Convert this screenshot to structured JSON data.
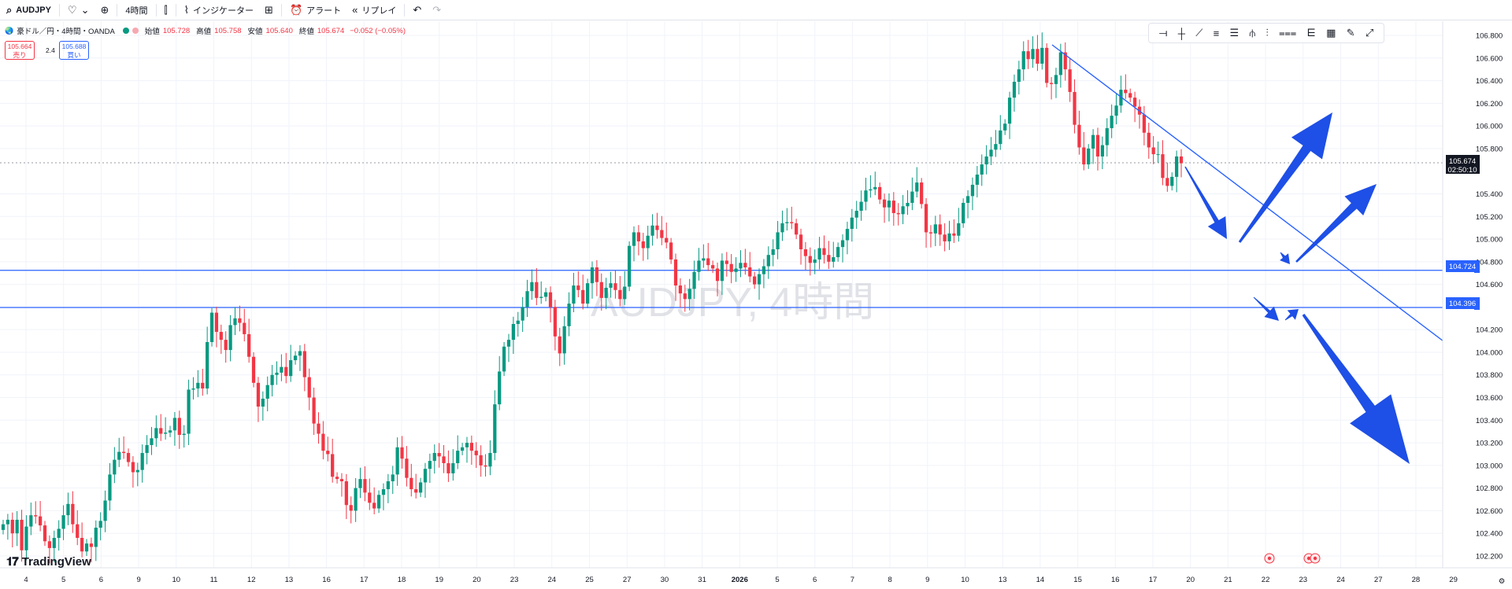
{
  "toolbar": {
    "symbol": "AUDJPY",
    "interval": "4時間",
    "indicators_label": "インジケーター",
    "alert_label": "アラート",
    "replay_label": "リプレイ"
  },
  "legend": {
    "title": "豪ドル／円・4時間・OANDA",
    "open_label": "始値",
    "open": "105.728",
    "high_label": "高値",
    "high": "105.758",
    "low_label": "安値",
    "low": "105.640",
    "close_label": "終値",
    "close": "105.674",
    "change": "−0.052 (−0.05%)",
    "sell_price": "105.664",
    "sell_label": "売り",
    "buy_price": "105.688",
    "buy_label": "買い",
    "spread": "2.4"
  },
  "watermark": "AUDJPY, 4時間",
  "brand": "TradingView",
  "price_tag": {
    "price": "105.674",
    "countdown": "02:50:10"
  },
  "level_tags": [
    "104.724",
    "104.396"
  ],
  "colors": {
    "up": "#089981",
    "down": "#f23645",
    "line": "#2962ff",
    "arrow": "#1e4fe6"
  },
  "chart_data": {
    "type": "candlestick",
    "y_ticks": [
      "106.800",
      "106.600",
      "106.400",
      "106.200",
      "106.000",
      "105.800",
      "105.400",
      "105.200",
      "105.000",
      "104.800",
      "104.600",
      "104.200",
      "104.000",
      "103.800",
      "103.600",
      "103.400",
      "103.200",
      "103.000",
      "102.800",
      "102.600",
      "102.400",
      "102.200"
    ],
    "y_range": [
      102.1,
      106.9
    ],
    "x_labels": [
      "4",
      "5",
      "6",
      "9",
      "10",
      "11",
      "12",
      "13",
      "16",
      "17",
      "18",
      "19",
      "20",
      "23",
      "24",
      "25",
      "27",
      "30",
      "31",
      "2026",
      "5",
      "6",
      "7",
      "8",
      "9",
      "10",
      "13",
      "14",
      "15",
      "16",
      "17",
      "20",
      "21",
      "22",
      "23",
      "24",
      "27",
      "28",
      "29"
    ],
    "horizontal_levels": [
      104.724,
      104.396
    ],
    "last_price": 105.674,
    "closes": [
      102.48,
      102.52,
      102.4,
      102.52,
      102.25,
      102.46,
      102.56,
      102.55,
      102.47,
      102.33,
      102.27,
      102.36,
      102.44,
      102.56,
      102.66,
      102.48,
      102.36,
      102.24,
      102.31,
      102.28,
      102.45,
      102.51,
      102.69,
      102.92,
      103.05,
      103.12,
      103.11,
      103.03,
      102.94,
      102.96,
      103.11,
      103.18,
      103.24,
      103.33,
      103.28,
      103.29,
      103.31,
      103.42,
      103.27,
      103.28,
      103.67,
      103.68,
      103.73,
      103.68,
      104.09,
      104.35,
      104.18,
      104.11,
      104.02,
      104.24,
      104.3,
      104.26,
      104.16,
      103.96,
      103.73,
      103.52,
      103.59,
      103.71,
      103.8,
      103.82,
      103.87,
      103.79,
      103.93,
      103.97,
      104.01,
      103.78,
      103.6,
      103.37,
      103.28,
      103.13,
      103.1,
      102.9,
      102.88,
      102.86,
      102.65,
      102.6,
      102.8,
      102.88,
      102.76,
      102.67,
      102.62,
      102.74,
      102.79,
      102.86,
      102.92,
      103.16,
      103.06,
      102.89,
      102.79,
      102.76,
      102.85,
      102.97,
      103.04,
      103.11,
      103.08,
      103.02,
      102.93,
      103.02,
      103.13,
      103.16,
      103.2,
      103.13,
      103.09,
      103.0,
      102.99,
      103.11,
      103.54,
      103.83,
      104.05,
      104.11,
      104.25,
      104.28,
      104.4,
      104.54,
      104.62,
      104.48,
      104.49,
      104.53,
      104.4,
      104.14,
      103.99,
      104.23,
      104.43,
      104.59,
      104.55,
      104.43,
      104.61,
      104.75,
      104.62,
      104.48,
      104.57,
      104.61,
      104.55,
      104.47,
      104.58,
      104.94,
      105.06,
      104.98,
      104.92,
      105.03,
      105.12,
      105.08,
      105.01,
      104.97,
      104.82,
      104.59,
      104.52,
      104.47,
      104.56,
      104.71,
      104.81,
      104.83,
      104.77,
      104.74,
      104.63,
      104.81,
      104.78,
      104.71,
      104.74,
      104.79,
      104.75,
      104.67,
      104.6,
      104.69,
      104.76,
      104.86,
      104.91,
      105.06,
      105.14,
      105.15,
      105.14,
      105.04,
      104.91,
      104.85,
      104.79,
      104.82,
      104.92,
      104.86,
      104.8,
      104.84,
      104.93,
      104.99,
      105.09,
      105.19,
      105.25,
      105.33,
      105.43,
      105.44,
      105.46,
      105.35,
      105.28,
      105.34,
      105.23,
      105.22,
      105.29,
      105.32,
      105.42,
      105.5,
      105.31,
      105.06,
      105.05,
      105.13,
      105.04,
      104.98,
      105.05,
      105.03,
      105.14,
      105.32,
      105.38,
      105.48,
      105.57,
      105.66,
      105.73,
      105.79,
      105.84,
      105.96,
      106.02,
      106.25,
      106.39,
      106.5,
      106.66,
      106.59,
      106.68,
      106.55,
      106.69,
      106.38,
      106.37,
      106.45,
      106.65,
      106.5,
      106.3,
      106.01,
      105.81,
      105.66,
      105.8,
      105.92,
      105.73,
      105.83,
      105.98,
      106.09,
      106.18,
      106.32,
      106.29,
      106.25,
      106.17,
      106.1,
      105.94,
      105.81,
      105.75,
      105.75,
      105.54,
      105.47,
      105.55,
      105.73,
      105.67
    ]
  }
}
